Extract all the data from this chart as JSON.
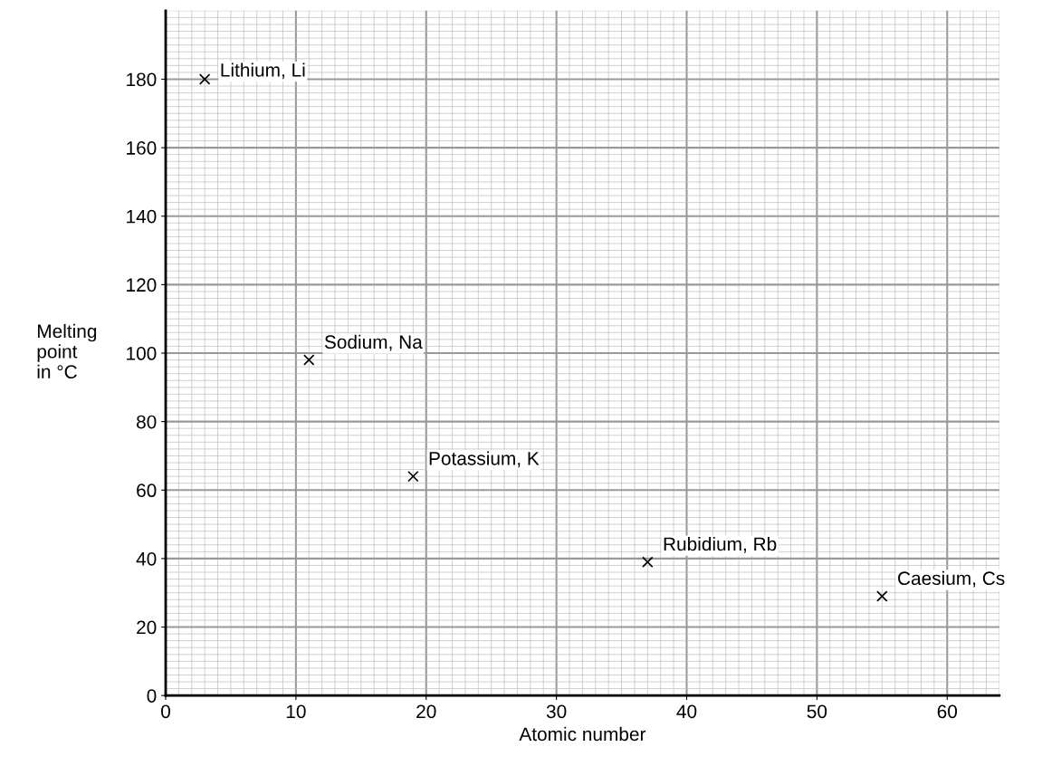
{
  "chart_data": {
    "type": "scatter",
    "xlabel": "Atomic number",
    "ylabel": "Melting\npoint\nin °C",
    "series": [
      {
        "color": "#000000",
        "x": [
          3,
          11,
          19,
          37,
          55
        ],
        "values": [
          180,
          98,
          64,
          39,
          29
        ]
      }
    ],
    "annotations": [
      {
        "text": "Lithium, Li",
        "x": 3,
        "y": 180
      },
      {
        "text": "Sodium, Na",
        "x": 11,
        "y": 98
      },
      {
        "text": "Potassium, K",
        "x": 19,
        "y": 64
      },
      {
        "text": "Rubidium, Rb",
        "x": 37,
        "y": 39
      },
      {
        "text": "Caesium, Cs",
        "x": 55,
        "y": 29
      }
    ],
    "xlim": [
      0,
      64
    ],
    "ylim": [
      0,
      200
    ],
    "xticks": [
      0,
      10,
      20,
      30,
      40,
      50,
      60
    ],
    "yticks": [
      0,
      20,
      40,
      60,
      80,
      100,
      120,
      140,
      160,
      180
    ],
    "grid": true,
    "marker": "cross"
  }
}
